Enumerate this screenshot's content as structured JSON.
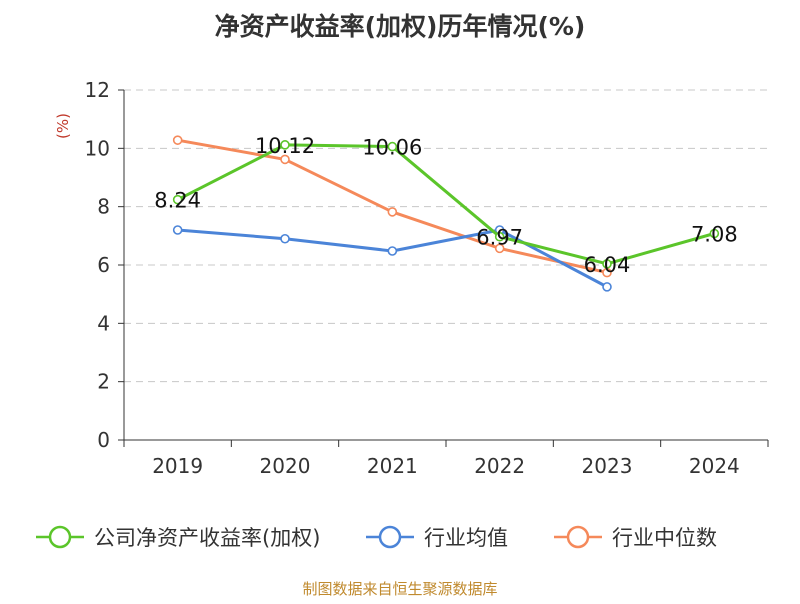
{
  "chart_data": {
    "type": "line",
    "title": "净资产收益率(加权)历年情况(%)",
    "ylabel": "(%)",
    "xlabel": "",
    "categories": [
      "2019",
      "2020",
      "2021",
      "2022",
      "2023",
      "2024"
    ],
    "ylim": [
      0,
      12
    ],
    "yticks": [
      0,
      2,
      4,
      6,
      8,
      10,
      12
    ],
    "grid": true,
    "legend_position": "bottom",
    "series": [
      {
        "name": "公司净资产收益率(加权)",
        "color": "#5bc52a",
        "values": [
          8.24,
          10.12,
          10.06,
          6.97,
          6.04,
          7.08
        ],
        "labels": [
          "8.24",
          "10.12",
          "10.06",
          "6.97",
          "6.04",
          "7.08"
        ]
      },
      {
        "name": "行业均值",
        "color": "#4b84d8",
        "values": [
          7.2,
          6.9,
          6.48,
          7.2,
          5.25,
          null
        ]
      },
      {
        "name": "行业中位数",
        "color": "#f5895a",
        "values": [
          10.28,
          9.62,
          7.82,
          6.57,
          5.74,
          null
        ]
      }
    ]
  },
  "footer": {
    "source": "制图数据来自恒生聚源数据库"
  }
}
